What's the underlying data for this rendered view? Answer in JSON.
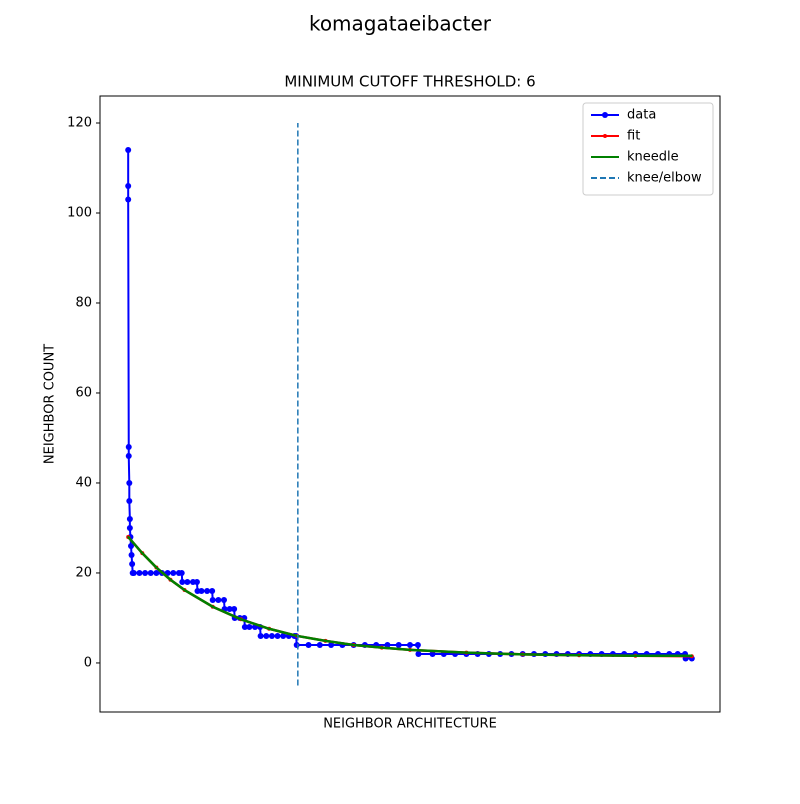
{
  "chart_data": {
    "type": "line",
    "suptitle": "komagataeibacter",
    "title": "MINIMUM CUTOFF THRESHOLD: 6",
    "x_label": "NEIGHBOR ARCHITECTURE",
    "y_label": "NEIGHBOR COUNT",
    "xlim": [
      -50,
      1050
    ],
    "ylim": [
      -10.9,
      126
    ],
    "yticks": [
      0,
      20,
      40,
      60,
      80,
      100,
      120
    ],
    "legend": "upper right",
    "series": [
      {
        "name": "data",
        "color": "#0000ff",
        "marker": 3,
        "x": [
          0,
          0,
          0,
          1,
          1,
          2,
          2,
          3,
          3,
          4,
          5,
          6,
          7,
          8,
          10,
          20,
          30,
          40,
          50,
          60,
          70,
          80,
          90,
          95,
          96,
          105,
          115,
          122,
          123,
          130,
          140,
          149,
          150,
          160,
          170,
          171,
          180,
          188,
          189,
          198,
          206,
          207,
          215,
          225,
          234,
          235,
          245,
          255,
          265,
          275,
          285,
          295,
          298,
          299,
          320,
          340,
          360,
          380,
          400,
          420,
          440,
          460,
          480,
          500,
          514,
          515,
          540,
          560,
          580,
          600,
          620,
          640,
          660,
          680,
          700,
          720,
          740,
          760,
          780,
          800,
          820,
          840,
          860,
          880,
          900,
          920,
          940,
          960,
          975,
          988,
          989,
          1000
        ],
        "values": [
          114,
          106,
          103,
          48,
          46,
          40,
          36,
          32,
          30,
          28,
          26,
          24,
          22,
          20,
          20,
          20,
          20,
          20,
          20,
          20,
          20,
          20,
          20,
          20,
          18,
          18,
          18,
          18,
          16,
          16,
          16,
          16,
          14,
          14,
          14,
          12,
          12,
          12,
          10,
          10,
          10,
          8,
          8,
          8,
          8,
          6,
          6,
          6,
          6,
          6,
          6,
          6,
          6,
          4,
          4,
          4,
          4,
          4,
          4,
          4,
          4,
          4,
          4,
          4,
          4,
          2,
          2,
          2,
          2,
          2,
          2,
          2,
          2,
          2,
          2,
          2,
          2,
          2,
          2,
          2,
          2,
          2,
          2,
          2,
          2,
          2,
          2,
          2,
          2,
          2,
          1,
          1
        ]
      },
      {
        "name": "fit",
        "color": "#ff0000",
        "marker": 2,
        "x": [
          0,
          25,
          50,
          75,
          100,
          150,
          200,
          250,
          300,
          350,
          400,
          450,
          500,
          600,
          700,
          800,
          900,
          1000
        ],
        "values": [
          28,
          24.4,
          21.2,
          18.5,
          16.2,
          12.5,
          9.7,
          7.6,
          6.0,
          4.9,
          4.0,
          3.4,
          2.9,
          2.3,
          1.9,
          1.7,
          1.6,
          1.5
        ]
      },
      {
        "name": "kneedle",
        "color": "#008000",
        "marker": 1,
        "x": [
          0,
          25,
          50,
          75,
          100,
          150,
          200,
          250,
          300,
          350,
          400,
          450,
          500,
          600,
          700,
          800,
          900,
          1000
        ],
        "values": [
          28,
          24.4,
          21.2,
          18.5,
          16.2,
          12.5,
          9.7,
          7.6,
          6.0,
          4.9,
          4.0,
          3.4,
          2.9,
          2.3,
          1.9,
          1.7,
          1.6,
          1.6
        ]
      }
    ],
    "knee": {
      "name": "knee/elbow",
      "color": "#1f77b4",
      "x": 301,
      "ymin": -5,
      "ymax": 120
    }
  }
}
